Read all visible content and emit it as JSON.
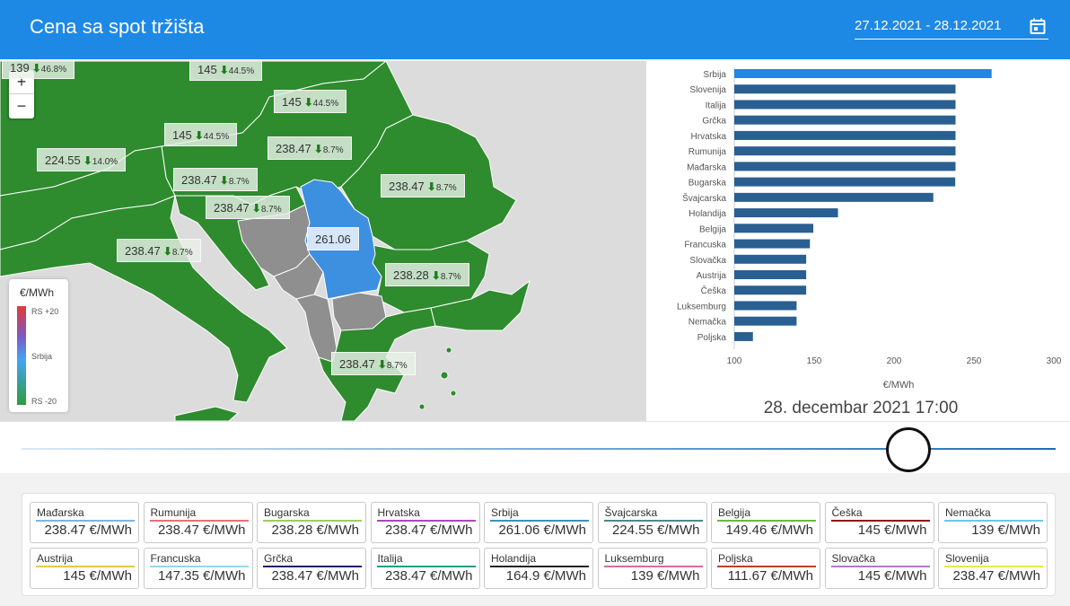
{
  "header": {
    "title": "Cena sa spot tržišta",
    "date_range": "27.12.2021 - 28.12.2021",
    "calendar_icon": "calendar-icon"
  },
  "map": {
    "zoom_in": "+",
    "zoom_out": "−",
    "labels": [
      {
        "id": "top-left",
        "value": "139",
        "arrow": "⬇",
        "pct": "46.8%"
      },
      {
        "id": "top-mid",
        "value": "145",
        "arrow": "⬇",
        "pct": "44.5%"
      },
      {
        "id": "austria-north",
        "value": "145",
        "arrow": "⬇",
        "pct": "44.5%"
      },
      {
        "id": "austria",
        "value": "145",
        "arrow": "⬇",
        "pct": "44.5%"
      },
      {
        "id": "hungary",
        "value": "238.47",
        "arrow": "⬇",
        "pct": "8.7%"
      },
      {
        "id": "switzerland",
        "value": "224.55",
        "arrow": "⬇",
        "pct": "14.0%"
      },
      {
        "id": "slovenia",
        "value": "238.47",
        "arrow": "⬇",
        "pct": "8.7%"
      },
      {
        "id": "romania",
        "value": "238.47",
        "arrow": "⬇",
        "pct": "8.7%"
      },
      {
        "id": "croatia",
        "value": "238.47",
        "arrow": "⬇",
        "pct": "8.7%"
      },
      {
        "id": "serbia",
        "value": "261.06",
        "arrow": "",
        "pct": ""
      },
      {
        "id": "italy",
        "value": "238.47",
        "arrow": "⬇",
        "pct": "8.7%"
      },
      {
        "id": "bulgaria",
        "value": "238.28",
        "arrow": "⬇",
        "pct": "8.7%"
      },
      {
        "id": "greece",
        "value": "238.47",
        "arrow": "⬇",
        "pct": "8.7%"
      }
    ],
    "legend": {
      "title": "€/MWh",
      "top": "RS +20",
      "mid": "Srbija",
      "bottom": "RS -20"
    },
    "colors": {
      "green": "#2e8b2e",
      "blue": "#3d8fe0",
      "gray": "#8f8f8f",
      "sea": "#dcdcdc"
    }
  },
  "chart_data": {
    "type": "bar",
    "orientation": "horizontal",
    "categories": [
      "Srbija",
      "Slovenija",
      "Italija",
      "Grčka",
      "Hrvatska",
      "Rumunija",
      "Mađarska",
      "Bugarska",
      "Švajcarska",
      "Holandija",
      "Belgija",
      "Francuska",
      "Slovačka",
      "Austrija",
      "Češka",
      "Luksemburg",
      "Nemačka",
      "Poljska"
    ],
    "values": [
      261.06,
      238.47,
      238.47,
      238.47,
      238.47,
      238.47,
      238.47,
      238.28,
      224.55,
      164.9,
      149.46,
      147.35,
      145,
      145,
      145,
      139,
      139,
      111.67
    ],
    "highlight": "Srbija",
    "xlim": [
      100,
      300
    ],
    "xticks": [
      100,
      150,
      200,
      250,
      300
    ],
    "xlabel": "€/MWh",
    "colors": {
      "highlight": "#1e88e5",
      "default": "#2a5f91"
    }
  },
  "timestamp": "28. decembar 2021 17:00",
  "slider": {
    "progress": 0.8576
  },
  "cards": [
    {
      "name": "Mađarska",
      "value": "238.47 €/MWh",
      "color": "#7ab6e0"
    },
    {
      "name": "Rumunija",
      "value": "238.47 €/MWh",
      "color": "#e57373"
    },
    {
      "name": "Bugarska",
      "value": "238.28 €/MWh",
      "color": "#9ccc65"
    },
    {
      "name": "Hrvatska",
      "value": "238.47 €/MWh",
      "color": "#ab47bc"
    },
    {
      "name": "Srbija",
      "value": "261.06 €/MWh",
      "color": "#3f8fbf"
    },
    {
      "name": "Švajcarska",
      "value": "224.55 €/MWh",
      "color": "#4a8a8a"
    },
    {
      "name": "Belgija",
      "value": "149.46 €/MWh",
      "color": "#66bb44"
    },
    {
      "name": "Češka",
      "value": "145 €/MWh",
      "color": "#8b1a1a"
    },
    {
      "name": "Nemačka",
      "value": "139 €/MWh",
      "color": "#6ec6ea"
    },
    {
      "name": "Austrija",
      "value": "145 €/MWh",
      "color": "#e6c84c"
    },
    {
      "name": "Francuska",
      "value": "147.35 €/MWh",
      "color": "#90d8f0"
    },
    {
      "name": "Grčka",
      "value": "238.47 €/MWh",
      "color": "#1a1a6e"
    },
    {
      "name": "Italija",
      "value": "238.47 €/MWh",
      "color": "#1aa085"
    },
    {
      "name": "Holandija",
      "value": "164.9 €/MWh",
      "color": "#222222"
    },
    {
      "name": "Luksemburg",
      "value": "139 €/MWh",
      "color": "#d96aa0"
    },
    {
      "name": "Poljska",
      "value": "111.67 €/MWh",
      "color": "#b5451b"
    },
    {
      "name": "Slovačka",
      "value": "145 €/MWh",
      "color": "#b07acc"
    },
    {
      "name": "Slovenija",
      "value": "238.47 €/MWh",
      "color": "#e8e84a"
    }
  ]
}
